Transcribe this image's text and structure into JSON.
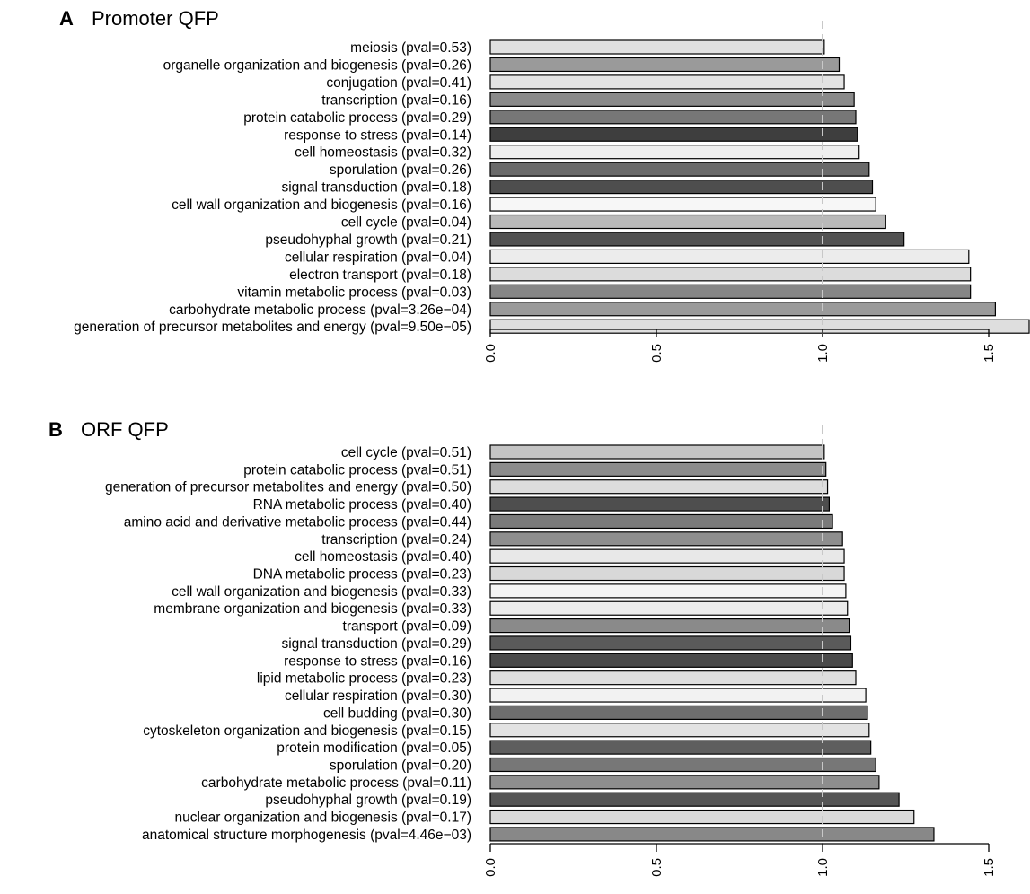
{
  "chart_data": [
    {
      "type": "bar",
      "orientation": "horizontal",
      "panel_letter": "A",
      "title": "Promoter QFP",
      "categories": [
        "meiosis (pval=0.53)",
        "organelle organization and biogenesis (pval=0.26)",
        "conjugation (pval=0.41)",
        "transcription (pval=0.16)",
        "protein catabolic process (pval=0.29)",
        "response to stress (pval=0.14)",
        "cell homeostasis (pval=0.32)",
        "sporulation (pval=0.26)",
        "signal transduction (pval=0.18)",
        "cell wall organization and biogenesis (pval=0.16)",
        "cell cycle (pval=0.04)",
        "pseudohyphal growth (pval=0.21)",
        "cellular respiration (pval=0.04)",
        "electron transport (pval=0.18)",
        "vitamin metabolic process (pval=0.03)",
        "carbohydrate metabolic process (pval=3.26e−04)",
        "generation of precursor metabolites and energy (pval=9.50e−05)"
      ],
      "values": [
        1.005,
        1.05,
        1.065,
        1.095,
        1.1,
        1.105,
        1.11,
        1.14,
        1.15,
        1.16,
        1.19,
        1.245,
        1.44,
        1.445,
        1.445,
        1.52,
        1.64
      ],
      "bar_colors": [
        "#e0e0e0",
        "#9a9a9a",
        "#e3e3e3",
        "#8a8a8a",
        "#777777",
        "#3e3e3e",
        "#eeeeee",
        "#6a6a6a",
        "#4e4e4e",
        "#f7f7f7",
        "#b9b9b9",
        "#525252",
        "#ececec",
        "#dcdcdc",
        "#868686",
        "#9a9a9a",
        "#dedede"
      ],
      "xlim": [
        0,
        1.6
      ],
      "x_ticks": [
        "0.0",
        "0.5",
        "1.0",
        "1.5"
      ],
      "reference_line": 1.0
    },
    {
      "type": "bar",
      "orientation": "horizontal",
      "panel_letter": "B",
      "title": "ORF QFP",
      "categories": [
        "cell cycle (pval=0.51)",
        "protein catabolic process (pval=0.51)",
        "generation of precursor metabolites and energy (pval=0.50)",
        "RNA metabolic process (pval=0.40)",
        "amino acid and derivative metabolic process (pval=0.44)",
        "transcription (pval=0.24)",
        "cell homeostasis (pval=0.40)",
        "DNA metabolic process (pval=0.23)",
        "cell wall organization and biogenesis (pval=0.33)",
        "membrane organization and biogenesis (pval=0.33)",
        "transport (pval=0.09)",
        "signal transduction (pval=0.29)",
        "response to stress (pval=0.16)",
        "lipid metabolic process (pval=0.23)",
        "cellular respiration (pval=0.30)",
        "cell budding (pval=0.30)",
        "cytoskeleton organization and biogenesis (pval=0.15)",
        "protein modification (pval=0.05)",
        "sporulation (pval=0.20)",
        "carbohydrate metabolic process (pval=0.11)",
        "pseudohyphal growth (pval=0.19)",
        "nuclear organization and biogenesis (pval=0.17)",
        "anatomical structure morphogenesis (pval=4.46e−03)"
      ],
      "values": [
        1.005,
        1.01,
        1.015,
        1.02,
        1.03,
        1.06,
        1.065,
        1.065,
        1.07,
        1.075,
        1.08,
        1.085,
        1.09,
        1.1,
        1.13,
        1.135,
        1.14,
        1.145,
        1.16,
        1.17,
        1.23,
        1.275,
        1.335
      ],
      "bar_colors": [
        "#c4c4c4",
        "#8c8c8c",
        "#dcdcdc",
        "#4e4e4e",
        "#7a7a7a",
        "#8e8e8e",
        "#e8e8e8",
        "#d8d8d8",
        "#f4f4f4",
        "#ebebeb",
        "#8a8a8a",
        "#5a5a5a",
        "#4a4a4a",
        "#dedede",
        "#f2f2f2",
        "#6e6e6e",
        "#e3e3e3",
        "#5e5e5e",
        "#777777",
        "#8e8e8e",
        "#555555",
        "#dadada",
        "#888888"
      ],
      "xlim": [
        0,
        1.6
      ],
      "x_ticks": [
        "0.0",
        "0.5",
        "1.0",
        "1.5"
      ],
      "reference_line": 1.0
    }
  ]
}
